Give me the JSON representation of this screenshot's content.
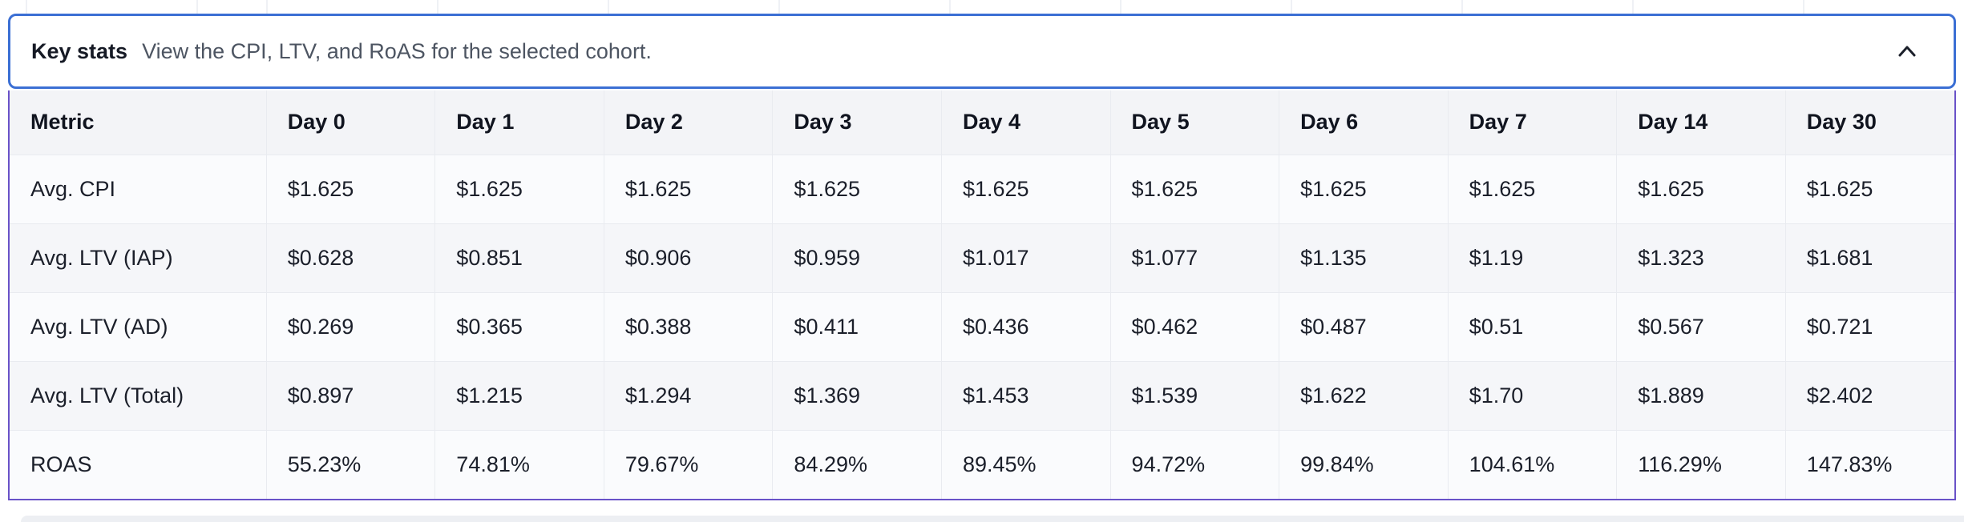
{
  "colors": {
    "accordion_border": "#3b6fd4",
    "table_border": "#6952c8",
    "header_row_bg": "#f3f4f7"
  },
  "accordion": {
    "title": "Key stats",
    "subtitle": "View the CPI, LTV, and RoAS for the selected cohort.",
    "state": "expanded",
    "chevron_icon": "chevron-up-icon"
  },
  "table": {
    "columns": [
      "Metric",
      "Day 0",
      "Day 1",
      "Day 2",
      "Day 3",
      "Day 4",
      "Day 5",
      "Day 6",
      "Day 7",
      "Day 14",
      "Day 30"
    ],
    "rows": [
      {
        "metric": "Avg. CPI",
        "values": [
          "$1.625",
          "$1.625",
          "$1.625",
          "$1.625",
          "$1.625",
          "$1.625",
          "$1.625",
          "$1.625",
          "$1.625",
          "$1.625"
        ]
      },
      {
        "metric": "Avg. LTV (IAP)",
        "values": [
          "$0.628",
          "$0.851",
          "$0.906",
          "$0.959",
          "$1.017",
          "$1.077",
          "$1.135",
          "$1.19",
          "$1.323",
          "$1.681"
        ]
      },
      {
        "metric": "Avg. LTV (AD)",
        "values": [
          "$0.269",
          "$0.365",
          "$0.388",
          "$0.411",
          "$0.436",
          "$0.462",
          "$0.487",
          "$0.51",
          "$0.567",
          "$0.721"
        ]
      },
      {
        "metric": "Avg. LTV (Total)",
        "values": [
          "$0.897",
          "$1.215",
          "$1.294",
          "$1.369",
          "$1.453",
          "$1.539",
          "$1.622",
          "$1.70",
          "$1.889",
          "$2.402"
        ]
      },
      {
        "metric": "ROAS",
        "values": [
          "55.23%",
          "74.81%",
          "79.67%",
          "84.29%",
          "89.45%",
          "94.72%",
          "99.84%",
          "104.61%",
          "116.29%",
          "147.83%"
        ]
      }
    ]
  }
}
